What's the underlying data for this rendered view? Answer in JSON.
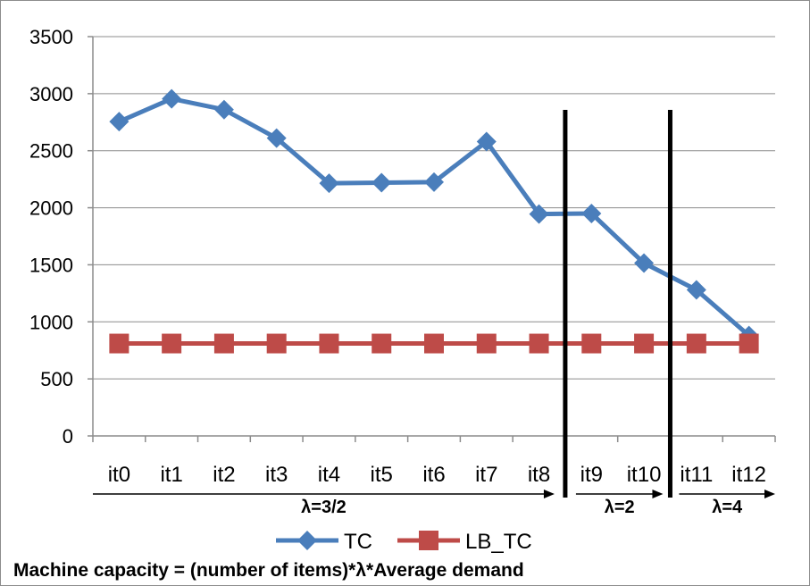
{
  "chart_data": {
    "type": "line",
    "categories": [
      "it0",
      "it1",
      "it2",
      "it3",
      "it4",
      "it5",
      "it6",
      "it7",
      "it8",
      "it9",
      "it10",
      "it11",
      "it12"
    ],
    "series": [
      {
        "name": "TC",
        "color": "#4a7ebb",
        "marker": "diamond",
        "values": [
          2755,
          2955,
          2860,
          2610,
          2215,
          2220,
          2225,
          2580,
          1945,
          1950,
          1515,
          1280,
          880
        ]
      },
      {
        "name": "LB_TC",
        "color": "#be4b48",
        "marker": "square",
        "values": [
          810,
          810,
          810,
          810,
          810,
          810,
          810,
          810,
          810,
          810,
          810,
          810,
          810
        ]
      }
    ],
    "ylim": [
      0,
      3500
    ],
    "yticks": [
      0,
      500,
      1000,
      1500,
      2000,
      2500,
      3000,
      3500
    ],
    "ytick_labels": [
      "0",
      "500",
      "1000",
      "1500",
      "2000",
      "2500",
      "3000",
      "3500"
    ],
    "grid": true,
    "legend_position": "bottom",
    "annotations": {
      "separators_after_categories": [
        "it8",
        "it10"
      ],
      "regions": [
        {
          "label": "λ=3/2",
          "from": "it0",
          "to": "it8"
        },
        {
          "label": "λ=2",
          "from": "it9",
          "to": "it10"
        },
        {
          "label": "λ=4",
          "from": "it11",
          "to": "it12"
        }
      ]
    },
    "footnote": "Machine capacity = (number of items)*λ*Average demand"
  }
}
